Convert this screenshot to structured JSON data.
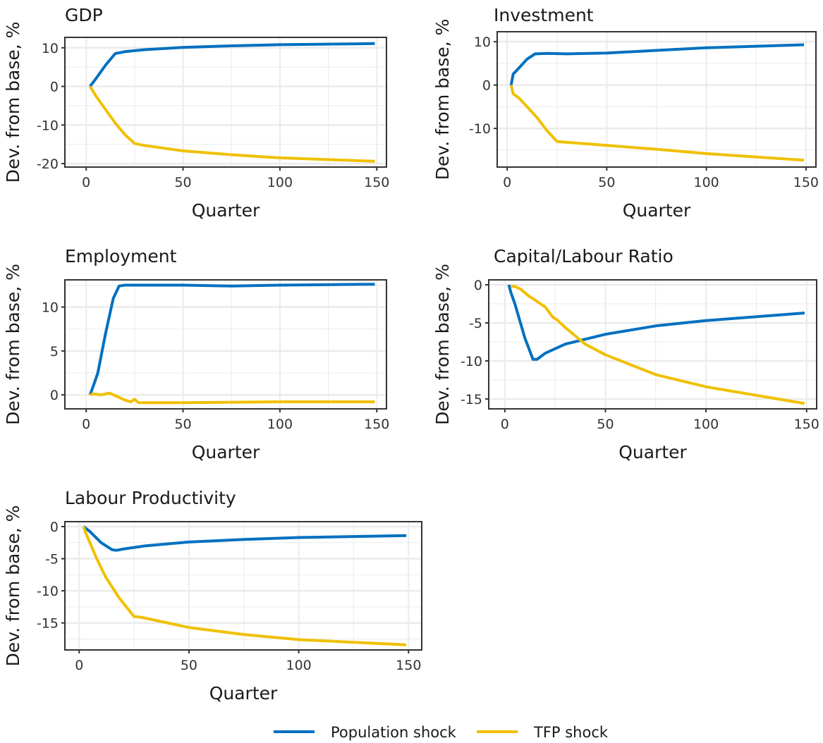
{
  "chart_data": [
    {
      "type": "line",
      "title": "GDP",
      "xlabel": "Quarter",
      "ylabel": "Dev. from base, %",
      "xlim": [
        -11,
        155
      ],
      "ylim": [
        -20.9,
        12.7
      ],
      "xticks": [
        0,
        50,
        100,
        150
      ],
      "yticks": [
        -20,
        -10,
        0,
        10
      ],
      "grid": true,
      "series": [
        {
          "name": "Population shock",
          "x": [
            2,
            5,
            10,
            15,
            20,
            30,
            50,
            75,
            100,
            149
          ],
          "y": [
            0,
            2,
            5.5,
            8.5,
            9,
            9.5,
            10.1,
            10.5,
            10.8,
            11.1
          ]
        },
        {
          "name": "TFP shock",
          "x": [
            2,
            5,
            10,
            15,
            20,
            25,
            30,
            50,
            75,
            100,
            149
          ],
          "y": [
            0,
            -2.5,
            -6,
            -9.5,
            -12.5,
            -14.8,
            -15.3,
            -16.7,
            -17.7,
            -18.5,
            -19.4
          ]
        }
      ]
    },
    {
      "type": "line",
      "title": "Investment",
      "xlabel": "Quarter",
      "ylabel": "Dev. from base, %",
      "xlim": [
        -5,
        155
      ],
      "ylim": [
        -18.9,
        12.3
      ],
      "xticks": [
        0,
        50,
        100,
        150
      ],
      "yticks": [
        -10,
        0,
        10
      ],
      "grid": true,
      "series": [
        {
          "name": "Population shock",
          "x": [
            2,
            3,
            5,
            10,
            14,
            20,
            30,
            50,
            75,
            100,
            149
          ],
          "y": [
            0,
            2.5,
            3.5,
            6,
            7.2,
            7.3,
            7.2,
            7.4,
            8,
            8.6,
            9.3
          ]
        },
        {
          "name": "TFP shock",
          "x": [
            2,
            3,
            6,
            10,
            15,
            20,
            25,
            30,
            50,
            75,
            100,
            149
          ],
          "y": [
            0,
            -2,
            -3,
            -5,
            -7.5,
            -10.5,
            -13,
            -13.2,
            -13.9,
            -14.8,
            -15.8,
            -17.3
          ]
        }
      ]
    },
    {
      "type": "line",
      "title": "Employment",
      "xlabel": "Quarter",
      "ylabel": "Dev. from base, %",
      "xlim": [
        -11,
        155
      ],
      "ylim": [
        -1.6,
        13.1
      ],
      "xticks": [
        0,
        50,
        100,
        150
      ],
      "yticks": [
        0,
        5,
        10
      ],
      "grid": true,
      "series": [
        {
          "name": "Population shock",
          "x": [
            2,
            4,
            6,
            10,
            14,
            17,
            20,
            50,
            75,
            100,
            149
          ],
          "y": [
            0,
            1.2,
            2.5,
            7,
            11,
            12.4,
            12.5,
            12.5,
            12.4,
            12.5,
            12.6
          ]
        },
        {
          "name": "TFP shock",
          "x": [
            2,
            4,
            8,
            12,
            15,
            20,
            23,
            25,
            27,
            30,
            50,
            100,
            149
          ],
          "y": [
            0,
            0.1,
            0,
            0.2,
            -0.1,
            -0.6,
            -0.8,
            -0.5,
            -0.9,
            -0.9,
            -0.9,
            -0.8,
            -0.8
          ]
        }
      ]
    },
    {
      "type": "line",
      "title": "Capital/Labour Ratio",
      "xlabel": "Quarter",
      "ylabel": "Dev. from base, %",
      "xlim": [
        -8,
        155
      ],
      "ylim": [
        -16.3,
        0.65
      ],
      "xticks": [
        0,
        50,
        100,
        150
      ],
      "yticks": [
        -15,
        -10,
        -5,
        0
      ],
      "grid": true,
      "series": [
        {
          "name": "Population shock",
          "x": [
            2,
            3,
            5,
            10,
            14,
            16,
            20,
            30,
            50,
            75,
            100,
            149
          ],
          "y": [
            0,
            -1,
            -2.5,
            -7,
            -9.8,
            -9.8,
            -9,
            -7.8,
            -6.5,
            -5.4,
            -4.7,
            -3.7
          ]
        },
        {
          "name": "TFP shock",
          "x": [
            3,
            5,
            8,
            12,
            15,
            20,
            24,
            26,
            30,
            40,
            50,
            75,
            100,
            149
          ],
          "y": [
            -0.2,
            -0.2,
            -0.6,
            -1.5,
            -2,
            -2.9,
            -4.3,
            -4.6,
            -5.6,
            -7.8,
            -9.2,
            -11.8,
            -13.4,
            -15.6
          ]
        }
      ]
    },
    {
      "type": "line",
      "title": "Labour Productivity",
      "xlabel": "Quarter",
      "ylabel": "Dev. from base, %",
      "xlim": [
        -6.5,
        156
      ],
      "ylim": [
        -19.2,
        0.77
      ],
      "xticks": [
        0,
        50,
        100,
        150
      ],
      "yticks": [
        -15,
        -10,
        -5,
        0
      ],
      "grid": true,
      "series": [
        {
          "name": "Population shock",
          "x": [
            2,
            5,
            10,
            15,
            17,
            20,
            30,
            50,
            75,
            100,
            149
          ],
          "y": [
            0,
            -0.8,
            -2.5,
            -3.6,
            -3.7,
            -3.5,
            -3,
            -2.4,
            -2,
            -1.7,
            -1.4
          ]
        },
        {
          "name": "TFP shock",
          "x": [
            2,
            3,
            8,
            12,
            18,
            25,
            28,
            50,
            75,
            100,
            149
          ],
          "y": [
            0,
            -1,
            -5,
            -7.8,
            -11,
            -14,
            -14.1,
            -15.7,
            -16.8,
            -17.6,
            -18.4
          ]
        }
      ]
    }
  ],
  "legend": {
    "position": "bottom",
    "items": [
      {
        "label": "Population shock",
        "color": "#0070c0"
      },
      {
        "label": "TFP shock",
        "color": "#f0c000"
      }
    ]
  }
}
